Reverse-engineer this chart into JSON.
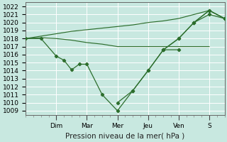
{
  "background_color": "#c8e8e0",
  "grid_color": "#b0d8d0",
  "line_color": "#2d6e2d",
  "ylabel": "Pression niveau de la mer( hPa )",
  "ylim": [
    1008.5,
    1022.5
  ],
  "yticks": [
    1009,
    1010,
    1011,
    1012,
    1013,
    1014,
    1015,
    1016,
    1017,
    1018,
    1019,
    1020,
    1021,
    1022
  ],
  "day_labels": [
    "Dim",
    "Mar",
    "Mer",
    "Jeu",
    "Ven",
    "S"
  ],
  "day_positions": [
    8,
    16,
    24,
    32,
    40,
    48
  ],
  "xlim": [
    0,
    52
  ],
  "tick_fontsize": 6.5,
  "label_fontsize": 7.5,
  "lines": [
    {
      "x": [
        0,
        4,
        8,
        10,
        12,
        14,
        16,
        20,
        24,
        28,
        32,
        36,
        40
      ],
      "y": [
        1018.0,
        1018.0,
        1015.8,
        1015.3,
        1014.1,
        1014.8,
        1014.8,
        1011.0,
        1009.0,
        1011.5,
        1014.0,
        1016.6,
        1016.6
      ],
      "markers": true
    },
    {
      "x": [
        0,
        4,
        8,
        12,
        16,
        20,
        24,
        28,
        32,
        36,
        40,
        44,
        48
      ],
      "y": [
        1018.0,
        1018.1,
        1018.0,
        1017.8,
        1017.5,
        1017.3,
        1017.0,
        1017.0,
        1017.0,
        1017.0,
        1017.0,
        1017.0,
        1017.0
      ],
      "markers": false
    },
    {
      "x": [
        0,
        4,
        8,
        12,
        16,
        20,
        24,
        28,
        32,
        36,
        40,
        44,
        48,
        52
      ],
      "y": [
        1018.0,
        1018.3,
        1018.6,
        1018.9,
        1019.1,
        1019.3,
        1019.5,
        1019.7,
        1020.0,
        1020.2,
        1020.5,
        1021.0,
        1021.5,
        1020.5
      ],
      "markers": false
    },
    {
      "x": [
        24,
        28,
        32,
        36,
        40,
        44,
        48,
        52
      ],
      "y": [
        1010.0,
        1011.5,
        1014.0,
        1016.6,
        1018.0,
        1020.0,
        1021.5,
        1020.5
      ],
      "markers": true
    },
    {
      "x": [
        36,
        40,
        44,
        48,
        52
      ],
      "y": [
        1016.6,
        1018.0,
        1020.0,
        1021.0,
        1020.5
      ],
      "markers": true
    },
    {
      "x": [
        44,
        48,
        52
      ],
      "y": [
        1020.0,
        1021.5,
        1020.5
      ],
      "markers": true
    }
  ]
}
